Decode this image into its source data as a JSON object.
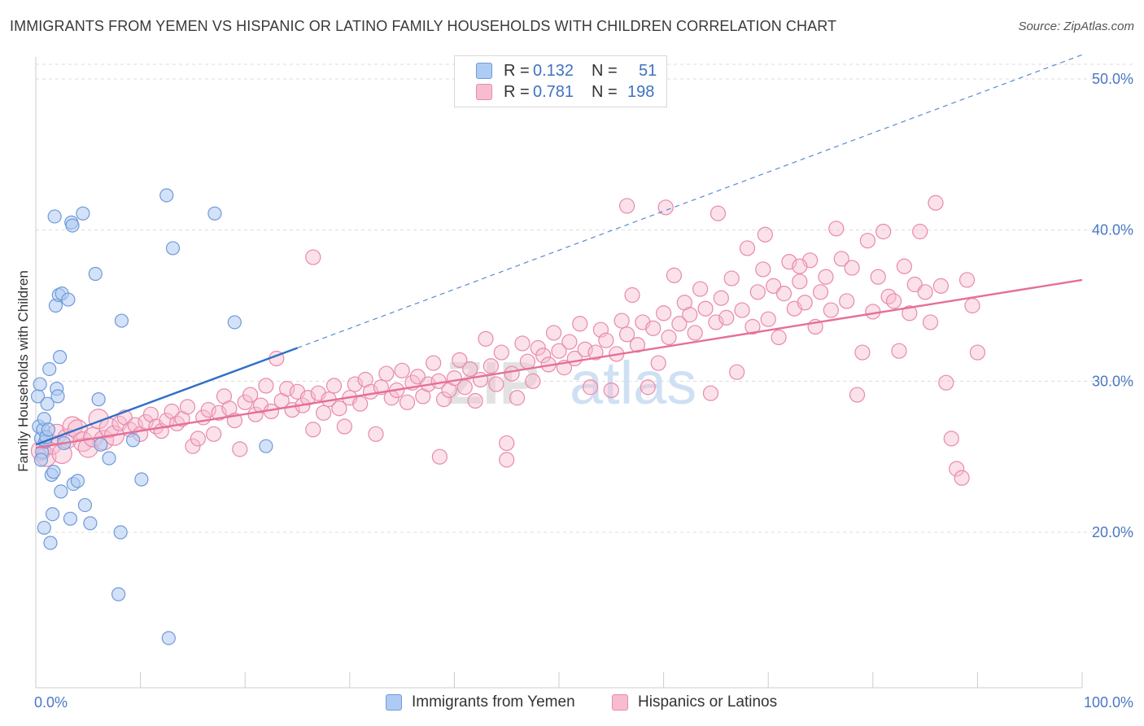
{
  "title": "IMMIGRANTS FROM YEMEN VS HISPANIC OR LATINO FAMILY HOUSEHOLDS WITH CHILDREN CORRELATION CHART",
  "source": "Source: ZipAtlas.com",
  "watermark": {
    "zip": "ZIP",
    "atlas": "atlas"
  },
  "legend": {
    "rows": [
      {
        "r_label": "R =",
        "r_value": "0.132",
        "n_label": "N =",
        "n_value": "51"
      },
      {
        "r_label": "R =",
        "r_value": "0.781",
        "n_label": "N =",
        "n_value": "198"
      }
    ]
  },
  "colors": {
    "series1_fill": "#aecbf3",
    "series1_stroke": "#6f9ad8",
    "series1_line": "#2f6fc7",
    "series2_fill": "#f7bcd0",
    "series2_stroke": "#e88aaa",
    "series2_line": "#e56f97",
    "tick": "#4a78c2",
    "grid": "#dcdcdc"
  },
  "chart_data": {
    "type": "scatter",
    "title": "IMMIGRANTS FROM YEMEN VS HISPANIC OR LATINO FAMILY HOUSEHOLDS WITH CHILDREN CORRELATION CHART",
    "xlabel": "",
    "ylabel": "Family Households with Children",
    "xlim": [
      0,
      100
    ],
    "ylim": [
      10,
      51.5
    ],
    "x_tick_labels": [
      "0.0%",
      "100.0%"
    ],
    "y_ticks": [
      20,
      30,
      40,
      50
    ],
    "y_tick_labels": [
      "20.0%",
      "30.0%",
      "40.0%",
      "50.0%"
    ],
    "grid": true,
    "legend_placement": "top-center",
    "series": [
      {
        "name": "Immigrants from Yemen",
        "r": 0.132,
        "n": 51,
        "trend_solid": [
          [
            0,
            25.8
          ],
          [
            25,
            32.2
          ]
        ],
        "trend_dashed": [
          [
            25,
            32.2
          ],
          [
            100,
            51.6
          ]
        ],
        "points": [
          [
            0.2,
            29.0
          ],
          [
            0.3,
            27.0
          ],
          [
            0.4,
            29.8
          ],
          [
            0.5,
            26.2
          ],
          [
            0.6,
            25.3
          ],
          [
            0.7,
            26.8
          ],
          [
            0.8,
            27.5
          ],
          [
            0.9,
            26.0
          ],
          [
            1.0,
            26.3
          ],
          [
            1.1,
            28.5
          ],
          [
            1.2,
            26.8
          ],
          [
            1.3,
            30.8
          ],
          [
            1.5,
            23.8
          ],
          [
            1.6,
            21.2
          ],
          [
            1.7,
            24.0
          ],
          [
            1.8,
            40.9
          ],
          [
            1.9,
            35.0
          ],
          [
            2.0,
            29.5
          ],
          [
            2.1,
            29.0
          ],
          [
            2.2,
            35.7
          ],
          [
            2.3,
            31.6
          ],
          [
            2.4,
            22.7
          ],
          [
            2.5,
            35.8
          ],
          [
            3.1,
            35.4
          ],
          [
            3.3,
            20.9
          ],
          [
            3.4,
            40.5
          ],
          [
            3.5,
            40.3
          ],
          [
            3.6,
            23.2
          ],
          [
            4.0,
            23.4
          ],
          [
            4.5,
            41.1
          ],
          [
            4.7,
            21.8
          ],
          [
            5.2,
            20.6
          ],
          [
            5.7,
            37.1
          ],
          [
            6.0,
            28.8
          ],
          [
            6.2,
            25.8
          ],
          [
            7.0,
            24.9
          ],
          [
            7.9,
            15.9
          ],
          [
            8.1,
            20.0
          ],
          [
            8.2,
            34.0
          ],
          [
            9.3,
            26.1
          ],
          [
            10.1,
            23.5
          ],
          [
            12.5,
            42.3
          ],
          [
            12.7,
            13.0
          ],
          [
            13.1,
            38.8
          ],
          [
            17.1,
            41.1
          ],
          [
            19.0,
            33.9
          ],
          [
            22.0,
            25.7
          ],
          [
            0.8,
            20.3
          ],
          [
            1.4,
            19.3
          ],
          [
            0.5,
            24.8
          ],
          [
            2.7,
            25.9
          ]
        ]
      },
      {
        "name": "Hispanics or Latinos",
        "r": 0.781,
        "n": 198,
        "trend_solid": [
          [
            0,
            25.6
          ],
          [
            100,
            36.7
          ]
        ],
        "points": [
          [
            0.5,
            25.4
          ],
          [
            1.0,
            25.0
          ],
          [
            1.5,
            25.8
          ],
          [
            2.0,
            26.5
          ],
          [
            2.5,
            25.2
          ],
          [
            3.0,
            26.2
          ],
          [
            3.5,
            27.0
          ],
          [
            4.0,
            26.8
          ],
          [
            4.5,
            26.0
          ],
          [
            5.0,
            25.6
          ],
          [
            5.5,
            26.3
          ],
          [
            6.0,
            27.5
          ],
          [
            6.5,
            26.1
          ],
          [
            7.0,
            26.9
          ],
          [
            7.5,
            26.4
          ],
          [
            8.0,
            27.2
          ],
          [
            8.5,
            27.6
          ],
          [
            9.0,
            26.8
          ],
          [
            9.5,
            27.1
          ],
          [
            10.0,
            26.5
          ],
          [
            10.5,
            27.3
          ],
          [
            11.0,
            27.8
          ],
          [
            11.5,
            27.0
          ],
          [
            12.0,
            26.7
          ],
          [
            12.5,
            27.4
          ],
          [
            13.0,
            28.0
          ],
          [
            13.5,
            27.2
          ],
          [
            14.0,
            27.5
          ],
          [
            14.5,
            28.3
          ],
          [
            15.0,
            25.7
          ],
          [
            15.5,
            26.2
          ],
          [
            16.0,
            27.6
          ],
          [
            16.5,
            28.1
          ],
          [
            17.0,
            26.5
          ],
          [
            17.5,
            27.9
          ],
          [
            18.0,
            29.0
          ],
          [
            18.5,
            28.2
          ],
          [
            19.0,
            27.4
          ],
          [
            19.5,
            25.5
          ],
          [
            20.0,
            28.6
          ],
          [
            20.5,
            29.1
          ],
          [
            21.0,
            27.8
          ],
          [
            21.5,
            28.4
          ],
          [
            22.0,
            29.7
          ],
          [
            22.5,
            28.0
          ],
          [
            23.0,
            31.5
          ],
          [
            23.5,
            28.7
          ],
          [
            24.0,
            29.5
          ],
          [
            24.5,
            28.1
          ],
          [
            25.0,
            29.3
          ],
          [
            25.5,
            28.4
          ],
          [
            26.0,
            28.9
          ],
          [
            26.5,
            26.8
          ],
          [
            27.0,
            29.2
          ],
          [
            27.5,
            27.9
          ],
          [
            28.0,
            28.8
          ],
          [
            28.5,
            29.7
          ],
          [
            29.0,
            28.2
          ],
          [
            29.5,
            27.0
          ],
          [
            30.0,
            28.9
          ],
          [
            30.5,
            29.8
          ],
          [
            31.0,
            28.5
          ],
          [
            31.5,
            30.1
          ],
          [
            32.0,
            29.3
          ],
          [
            32.5,
            26.5
          ],
          [
            33.0,
            29.6
          ],
          [
            33.5,
            30.5
          ],
          [
            34.0,
            28.9
          ],
          [
            34.5,
            29.4
          ],
          [
            35.0,
            30.7
          ],
          [
            35.5,
            28.6
          ],
          [
            36.0,
            29.9
          ],
          [
            36.5,
            30.3
          ],
          [
            37.0,
            29.0
          ],
          [
            37.5,
            29.8
          ],
          [
            38.0,
            31.2
          ],
          [
            38.5,
            30.0
          ],
          [
            39.0,
            28.8
          ],
          [
            39.5,
            29.4
          ],
          [
            40.0,
            30.2
          ],
          [
            40.5,
            31.4
          ],
          [
            41.0,
            29.6
          ],
          [
            41.5,
            30.8
          ],
          [
            42.0,
            28.7
          ],
          [
            42.5,
            30.1
          ],
          [
            43.0,
            32.8
          ],
          [
            43.5,
            31.0
          ],
          [
            44.0,
            29.8
          ],
          [
            44.5,
            31.9
          ],
          [
            45.0,
            25.9
          ],
          [
            45.5,
            30.5
          ],
          [
            46.0,
            28.9
          ],
          [
            46.5,
            32.5
          ],
          [
            47.0,
            31.3
          ],
          [
            47.5,
            30.0
          ],
          [
            48.0,
            32.2
          ],
          [
            48.5,
            31.7
          ],
          [
            49.0,
            31.1
          ],
          [
            49.5,
            33.2
          ],
          [
            50.0,
            32.0
          ],
          [
            50.5,
            30.9
          ],
          [
            51.0,
            32.6
          ],
          [
            51.5,
            31.5
          ],
          [
            52.0,
            33.8
          ],
          [
            52.5,
            32.1
          ],
          [
            53.0,
            29.6
          ],
          [
            53.5,
            31.9
          ],
          [
            54.0,
            33.4
          ],
          [
            54.5,
            32.7
          ],
          [
            55.0,
            29.4
          ],
          [
            55.5,
            31.8
          ],
          [
            56.0,
            34.0
          ],
          [
            56.5,
            33.1
          ],
          [
            57.0,
            35.7
          ],
          [
            57.5,
            32.4
          ],
          [
            58.0,
            33.9
          ],
          [
            58.5,
            29.6
          ],
          [
            59.0,
            33.5
          ],
          [
            59.5,
            31.2
          ],
          [
            60.0,
            34.5
          ],
          [
            60.5,
            32.9
          ],
          [
            61.0,
            37.0
          ],
          [
            61.5,
            33.8
          ],
          [
            62.0,
            35.2
          ],
          [
            62.5,
            34.4
          ],
          [
            63.0,
            33.2
          ],
          [
            63.5,
            36.1
          ],
          [
            64.0,
            34.8
          ],
          [
            64.5,
            29.2
          ],
          [
            65.0,
            33.9
          ],
          [
            65.5,
            35.5
          ],
          [
            66.0,
            34.2
          ],
          [
            66.5,
            36.8
          ],
          [
            67.0,
            30.6
          ],
          [
            67.5,
            34.7
          ],
          [
            68.0,
            38.8
          ],
          [
            68.5,
            33.6
          ],
          [
            69.0,
            35.9
          ],
          [
            69.5,
            37.4
          ],
          [
            70.0,
            34.1
          ],
          [
            70.5,
            36.3
          ],
          [
            71.0,
            32.9
          ],
          [
            71.5,
            35.8
          ],
          [
            72.0,
            37.9
          ],
          [
            72.5,
            34.8
          ],
          [
            73.0,
            36.6
          ],
          [
            73.5,
            35.2
          ],
          [
            74.0,
            38.0
          ],
          [
            74.5,
            33.6
          ],
          [
            75.0,
            35.9
          ],
          [
            75.5,
            36.9
          ],
          [
            76.0,
            34.7
          ],
          [
            76.5,
            40.1
          ],
          [
            77.0,
            38.1
          ],
          [
            77.5,
            35.3
          ],
          [
            78.0,
            37.5
          ],
          [
            78.5,
            29.1
          ],
          [
            79.0,
            31.9
          ],
          [
            79.5,
            39.3
          ],
          [
            80.0,
            34.6
          ],
          [
            80.5,
            36.9
          ],
          [
            81.0,
            39.9
          ],
          [
            81.5,
            35.6
          ],
          [
            82.0,
            35.3
          ],
          [
            82.5,
            32.0
          ],
          [
            83.0,
            37.6
          ],
          [
            83.5,
            34.5
          ],
          [
            84.0,
            36.4
          ],
          [
            84.5,
            39.9
          ],
          [
            85.0,
            35.9
          ],
          [
            85.5,
            33.9
          ],
          [
            86.0,
            41.8
          ],
          [
            86.5,
            36.3
          ],
          [
            87.0,
            29.9
          ],
          [
            87.5,
            26.2
          ],
          [
            88.0,
            24.2
          ],
          [
            88.5,
            23.6
          ],
          [
            89.0,
            36.7
          ],
          [
            89.5,
            35.0
          ],
          [
            90.0,
            31.9
          ],
          [
            26.5,
            38.2
          ],
          [
            38.6,
            25.0
          ],
          [
            45.0,
            24.8
          ],
          [
            56.5,
            41.6
          ],
          [
            60.2,
            41.5
          ],
          [
            65.2,
            41.1
          ],
          [
            69.7,
            39.7
          ],
          [
            73.0,
            37.6
          ]
        ]
      }
    ]
  },
  "bottom_legend": [
    {
      "label": "Immigrants from Yemen"
    },
    {
      "label": "Hispanics or Latinos"
    }
  ]
}
